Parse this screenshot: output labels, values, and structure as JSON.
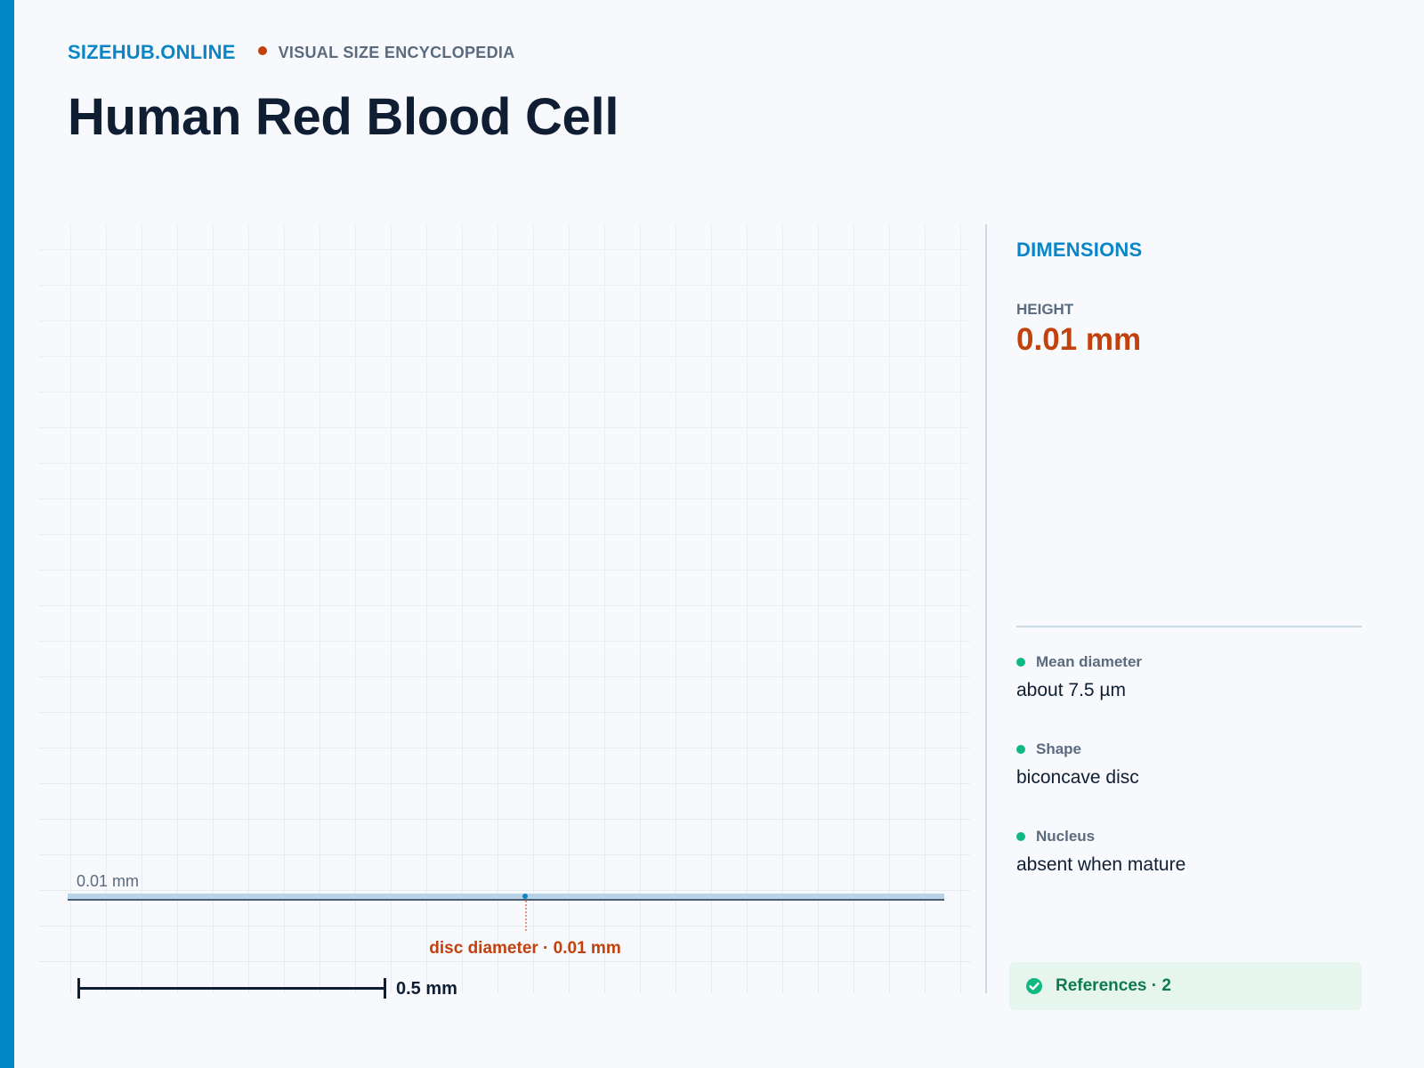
{
  "header": {
    "site_name": "SIZEHUB.ONLINE",
    "tagline": "VISUAL SIZE ENCYCLOPEDIA"
  },
  "page": {
    "title": "Human Red Blood Cell"
  },
  "visualization": {
    "object_height_label": "0.01 mm",
    "diameter_label": "disc diameter · 0.01 mm",
    "scale_bar_label": "0.5 mm"
  },
  "sidebar": {
    "heading": "DIMENSIONS",
    "height_label": "HEIGHT",
    "height_value": "0.01 mm",
    "facts": [
      {
        "label": "Mean diameter",
        "value": "about 7.5 µm"
      },
      {
        "label": "Shape",
        "value": "biconcave disc"
      },
      {
        "label": "Nucleus",
        "value": "absent when mature"
      }
    ],
    "references_label": "References · 2"
  },
  "colors": {
    "accent": "#0386c8",
    "highlight": "#c2410c",
    "fact_dot": "#10b981",
    "references_bg": "#e6f6ee",
    "references_text": "#0f7a4d"
  },
  "icons": {
    "fact_bullet": "dot-icon",
    "references": "check-circle-icon"
  }
}
